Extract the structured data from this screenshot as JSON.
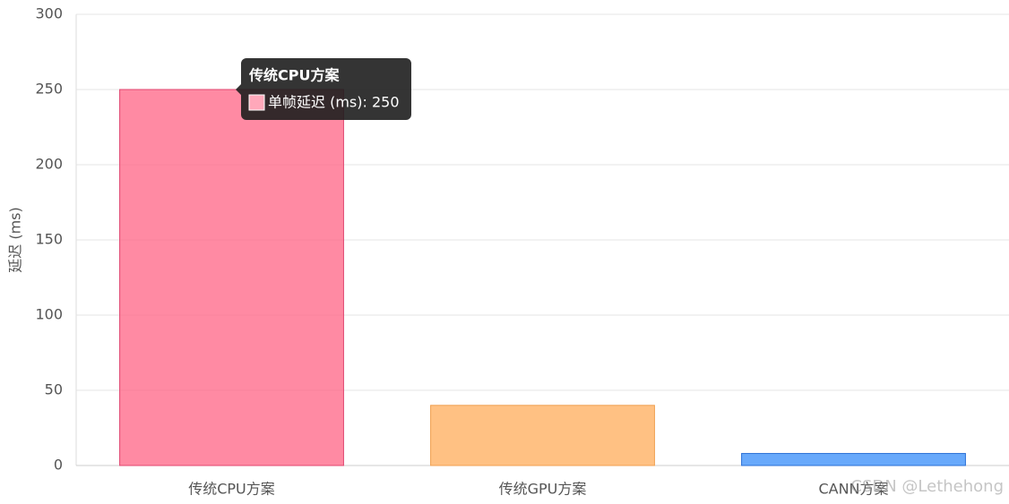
{
  "chart_data": {
    "type": "bar",
    "y_label": "延迟 (ms)",
    "series": [
      {
        "name": "单帧延迟 (ms)",
        "values": [
          250,
          40,
          8
        ]
      }
    ],
    "categories": [
      "传统CPU方案",
      "传统GPU方案",
      "CANN方案"
    ],
    "colors": [
      "rgba(255,99,132,0.75)",
      "rgba(255,159,64,0.65)",
      "rgba(54,140,250,0.75)"
    ],
    "border_colors": [
      "#e0456f",
      "#f0a050",
      "#2a6fd6"
    ],
    "ylim": [
      0,
      300
    ],
    "yticks": [
      0,
      50,
      100,
      150,
      200,
      250,
      300
    ],
    "grid": true,
    "tooltip": {
      "title": "传统CPU方案",
      "label": "单帧延迟 (ms): 250"
    },
    "watermark": "CSDN @Lethehong"
  }
}
